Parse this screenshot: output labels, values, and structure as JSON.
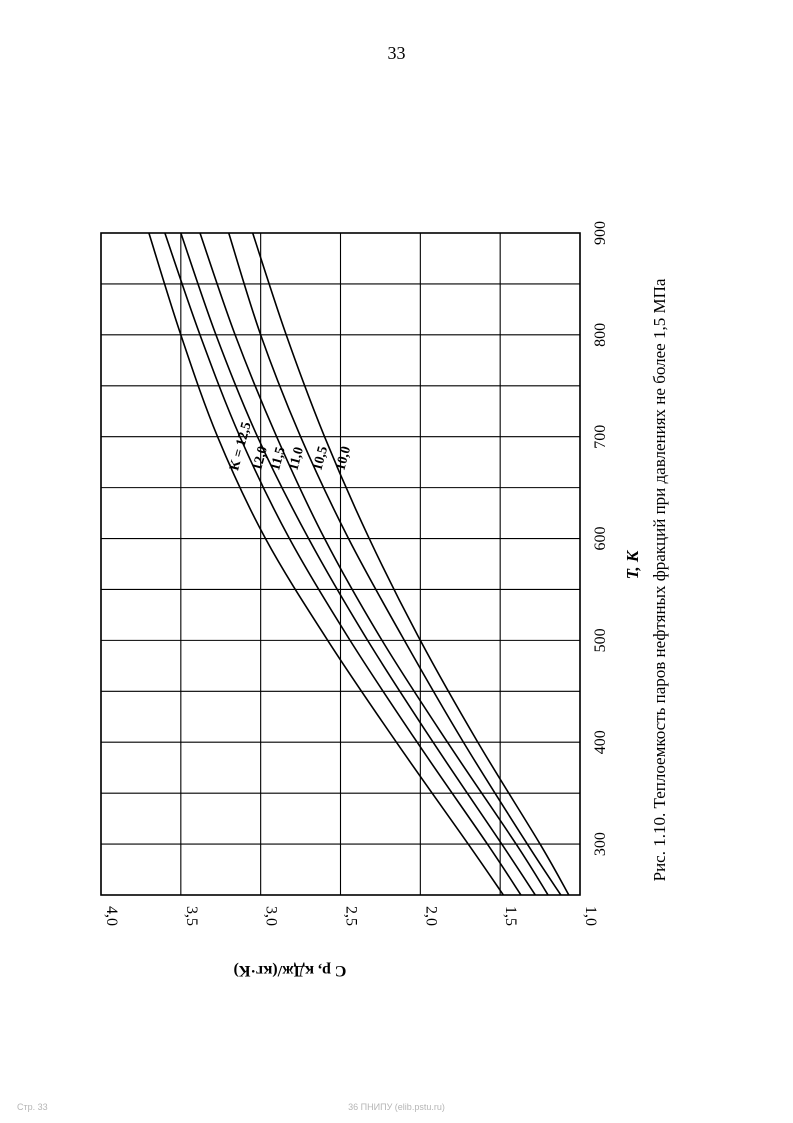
{
  "page": {
    "number": "33"
  },
  "footer": {
    "left": "Стр. 33",
    "center": "36 ПНИПУ (elib.pstu.ru)"
  },
  "chart_data": {
    "type": "line",
    "orientation": "rotated-90-ccw",
    "title": "Рис. 1.10. Теплоемкость паров нефтяных фракций при давлениях не более 1,5 МПа",
    "xlabel": "T, К",
    "ylabel": "C p, кДж/(кг·К)",
    "xlim": [
      250,
      900
    ],
    "ylim": [
      1.0,
      4.0
    ],
    "xticks": [
      300,
      400,
      500,
      600,
      700,
      800,
      900
    ],
    "yticks": [
      "1,0",
      "1,5",
      "2,0",
      "2,5",
      "3,0",
      "3,5",
      "4,0"
    ],
    "grid": true,
    "series": [
      {
        "name": "К = 12,5",
        "x": [
          250,
          300,
          400,
          500,
          600,
          700,
          800,
          900
        ],
        "y": [
          1.48,
          1.7,
          2.15,
          2.58,
          2.97,
          3.27,
          3.5,
          3.7
        ]
      },
      {
        "name": "12,0",
        "x": [
          250,
          300,
          400,
          500,
          600,
          700,
          800,
          900
        ],
        "y": [
          1.37,
          1.58,
          2.02,
          2.44,
          2.82,
          3.13,
          3.38,
          3.6
        ]
      },
      {
        "name": "11,5",
        "x": [
          250,
          300,
          400,
          500,
          600,
          700,
          800,
          900
        ],
        "y": [
          1.28,
          1.49,
          1.92,
          2.33,
          2.7,
          3.02,
          3.28,
          3.5
        ]
      },
      {
        "name": "11,0",
        "x": [
          250,
          300,
          400,
          500,
          600,
          700,
          800,
          900
        ],
        "y": [
          1.2,
          1.4,
          1.83,
          2.24,
          2.6,
          2.9,
          3.16,
          3.38
        ]
      },
      {
        "name": "10,5",
        "x": [
          250,
          300,
          400,
          500,
          600,
          700,
          800,
          900
        ],
        "y": [
          1.12,
          1.33,
          1.73,
          2.1,
          2.45,
          2.75,
          3.0,
          3.2
        ]
      },
      {
        "name": "10,0",
        "x": [
          250,
          300,
          400,
          500,
          600,
          700,
          800,
          900
        ],
        "y": [
          1.07,
          1.25,
          1.64,
          2.0,
          2.32,
          2.6,
          2.84,
          3.05
        ]
      }
    ]
  }
}
